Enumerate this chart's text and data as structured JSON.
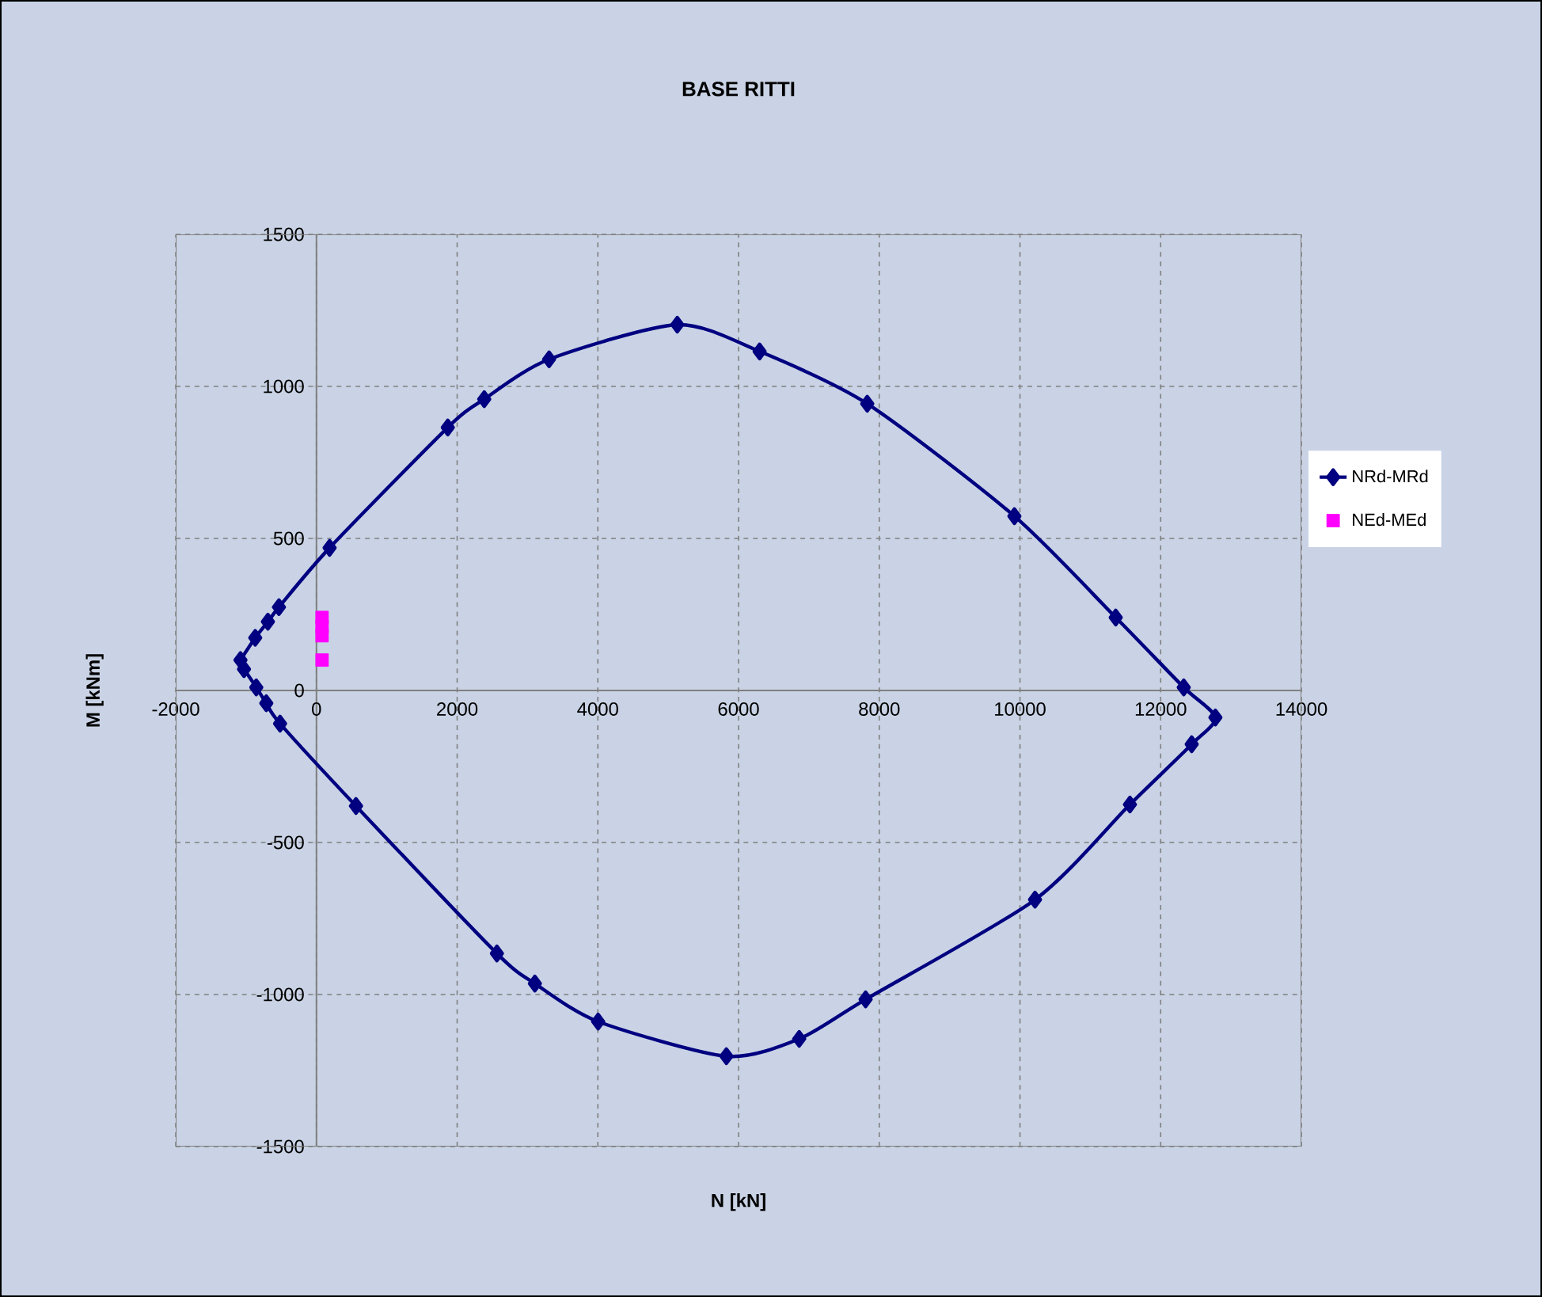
{
  "chart_data": {
    "type": "line",
    "title": "BASE RITTI",
    "xlabel": "N [kN]",
    "ylabel": "M [kNm]",
    "xlim": [
      -2000,
      14000
    ],
    "ylim": [
      -1500,
      1500
    ],
    "xticks": [
      -2000,
      0,
      2000,
      4000,
      6000,
      8000,
      10000,
      12000,
      14000
    ],
    "yticks": [
      -1500,
      -1000,
      -500,
      0,
      500,
      1000,
      1500
    ],
    "grid": true,
    "legend": "right",
    "series": [
      {
        "name": "NRd-MRd",
        "type": "line",
        "color": "#000080",
        "marker": "diamond",
        "line_style": "solid",
        "x": [
          -1080,
          -870,
          -690,
          -533,
          187,
          1867,
          2385,
          3307,
          5129,
          6299,
          7829,
          9921,
          11361,
          12328,
          12778,
          12441,
          11563,
          10214,
          7806,
          6862,
          5827,
          4004,
          3105,
          2565,
          562,
          -517,
          -713,
          -855,
          -1030
        ],
        "values": [
          100,
          173,
          226,
          274,
          469,
          865,
          958,
          1089,
          1203,
          1115,
          943,
          573,
          240,
          10,
          -89,
          -177,
          -375,
          -688,
          -1016,
          -1146,
          -1203,
          -1089,
          -964,
          -865,
          -380,
          -109,
          -42,
          10,
          70
        ]
      },
      {
        "name": "NEd-MEd",
        "type": "scatter",
        "color": "#ff00ff",
        "marker": "square",
        "x": [
          80,
          80,
          80,
          80
        ],
        "values": [
          240,
          210,
          180,
          100
        ]
      }
    ]
  }
}
